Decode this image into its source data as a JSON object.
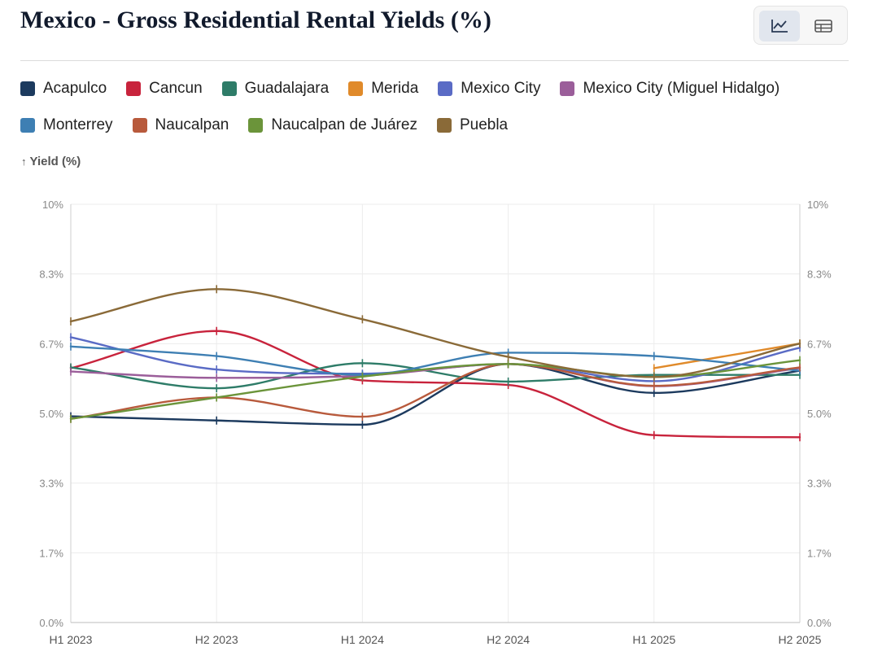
{
  "header": {
    "title": "Mexico - Gross Residential Rental Yields (%)",
    "view_toggle": {
      "chart_icon": "line-chart-icon",
      "table_icon": "table-icon",
      "active": "chart"
    }
  },
  "chart_data": {
    "type": "line",
    "title": "Mexico - Gross Residential Rental Yields (%)",
    "ylabel": "Yield (%)",
    "xlabel": "",
    "x": [
      "H1 2023",
      "H2 2023",
      "H1 2024",
      "H2 2024",
      "H1 2025",
      "H2 2025"
    ],
    "ylim": [
      0,
      10
    ],
    "yticks": [
      "0.0%",
      "1.7%",
      "3.3%",
      "5.0%",
      "6.7%",
      "8.3%",
      "10%"
    ],
    "ytick_values": [
      0,
      1.667,
      3.333,
      5.0,
      6.667,
      8.333,
      10
    ],
    "grid": true,
    "legend_position": "top",
    "series": [
      {
        "name": "Acapulco",
        "color": "#1c3a5e",
        "values": [
          4.93,
          4.83,
          4.73,
          6.18,
          5.49,
          6.02
        ]
      },
      {
        "name": "Cancun",
        "color": "#c8233c",
        "values": [
          6.08,
          6.97,
          5.79,
          5.68,
          4.48,
          4.43
        ]
      },
      {
        "name": "Guadalajara",
        "color": "#2e7c68",
        "values": [
          6.1,
          5.6,
          6.2,
          5.76,
          5.92,
          5.92
        ]
      },
      {
        "name": "Merida",
        "color": "#e08a2a",
        "values": [
          null,
          null,
          null,
          null,
          6.08,
          6.67
        ]
      },
      {
        "name": "Mexico City",
        "color": "#5a6bc5",
        "values": [
          6.82,
          6.05,
          5.95,
          6.18,
          5.77,
          6.57
        ]
      },
      {
        "name": "Mexico City (Miguel Hidalgo)",
        "color": "#9b5e9a",
        "values": [
          6.0,
          5.85,
          5.9,
          6.18,
          5.65,
          6.08
        ]
      },
      {
        "name": "Monterrey",
        "color": "#3e7fb3",
        "values": [
          6.6,
          6.37,
          5.92,
          6.45,
          6.37,
          6.02
        ]
      },
      {
        "name": "Naucalpan",
        "color": "#b85a3c",
        "values": [
          4.87,
          5.38,
          4.92,
          6.18,
          5.66,
          6.1
        ]
      },
      {
        "name": "Naucalpan de Juárez",
        "color": "#6b943a",
        "values": [
          4.87,
          5.38,
          5.88,
          6.18,
          5.87,
          6.27
        ]
      },
      {
        "name": "Puebla",
        "color": "#8a6a38",
        "values": [
          7.2,
          7.97,
          7.25,
          6.35,
          5.87,
          6.67
        ]
      }
    ]
  }
}
